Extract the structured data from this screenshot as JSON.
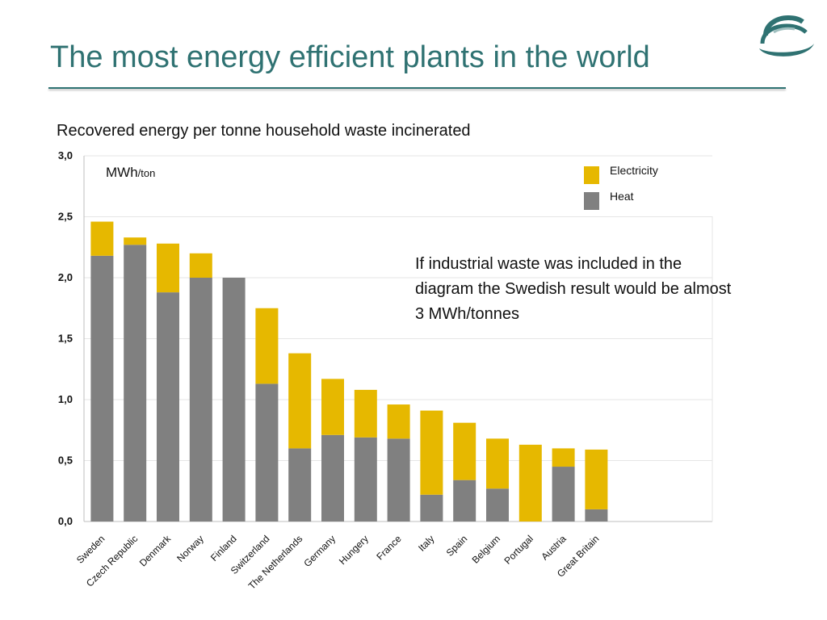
{
  "slide": {
    "title": "The most energy efficient plants in the world",
    "subtitle": "Recovered energy per tonne household waste incinerated",
    "unit_main": "MWh",
    "unit_sub": "/ton",
    "note": "If industrial waste was included in the diagram the Swedish result would be almost 3 MWh/tonnes",
    "logo_icon": "company-logo-icon"
  },
  "colors": {
    "title": "#2f7272",
    "heat": "#808080",
    "electricity": "#e6b800"
  },
  "chart_data": {
    "type": "bar",
    "stacked": true,
    "title": "Recovered energy per tonne household waste incinerated",
    "ylabel": "MWh/ton",
    "xlabel": "",
    "ylim": [
      0,
      3
    ],
    "yticks": [
      "0,0",
      "0,5",
      "1,0",
      "1,5",
      "2,0",
      "2,5",
      "3,0"
    ],
    "grid": true,
    "legend_position": "top-right",
    "categories": [
      "Sweden",
      "Czech Republic",
      "Denmark",
      "Norway",
      "Finland",
      "Switzerland",
      "The Netherlands",
      "Germany",
      "Hungery",
      "France",
      "Italy",
      "Spain",
      "Belgium",
      "Portugal",
      "Austria",
      "Great Britain"
    ],
    "series": [
      {
        "name": "Heat",
        "color": "#808080",
        "values": [
          2.18,
          2.27,
          1.88,
          2.0,
          2.0,
          1.13,
          0.6,
          0.71,
          0.69,
          0.68,
          0.22,
          0.34,
          0.27,
          0.0,
          0.45,
          0.1
        ]
      },
      {
        "name": "Electricity",
        "color": "#e6b800",
        "values": [
          0.28,
          0.06,
          0.4,
          0.2,
          0.0,
          0.62,
          0.78,
          0.46,
          0.39,
          0.28,
          0.69,
          0.47,
          0.41,
          0.63,
          0.15,
          0.49
        ]
      }
    ]
  }
}
